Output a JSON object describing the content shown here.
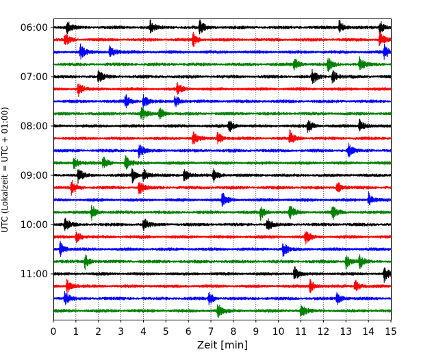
{
  "chart_data": {
    "type": "line",
    "title": "",
    "xlabel": "Zeit  [min]",
    "ylabel": "UTC (Lokalzeit = UTC + 01:00)",
    "xlim": [
      0,
      15
    ],
    "x_ticks": [
      0,
      1,
      2,
      3,
      4,
      5,
      6,
      7,
      8,
      9,
      10,
      11,
      12,
      13,
      14,
      15
    ],
    "x_tick_labels": [
      "0",
      "1",
      "2",
      "3",
      "4",
      "5",
      "6",
      "7",
      "8",
      "9",
      "10",
      "11",
      "12",
      "13",
      "14",
      "15"
    ],
    "y_tick_labels": [
      "06:00",
      "07:00",
      "08:00",
      "09:00",
      "10:00",
      "11:00"
    ],
    "grid": "vertical dotted",
    "trace_colors": [
      "#000000",
      "#ff0000",
      "#0000ff",
      "#008000"
    ],
    "row_minutes": 15,
    "traces": [
      {
        "start": "06:00",
        "events": [
          0.6,
          4.3,
          6.5,
          12.7,
          14.5
        ]
      },
      {
        "start": "06:15",
        "events": [
          0.5,
          6.2,
          14.5
        ]
      },
      {
        "start": "06:30",
        "events": [
          1.2,
          2.5,
          14.7
        ]
      },
      {
        "start": "06:45",
        "events": [
          10.7,
          12.2,
          13.6
        ]
      },
      {
        "start": "07:00",
        "events": [
          2.0,
          11.5,
          12.4
        ]
      },
      {
        "start": "07:15",
        "events": [
          1.1,
          5.5
        ]
      },
      {
        "start": "07:30",
        "events": [
          3.2,
          4.0,
          5.4
        ]
      },
      {
        "start": "07:45",
        "events": [
          4.7,
          3.9
        ]
      },
      {
        "start": "08:00",
        "events": [
          7.8,
          11.3,
          13.6
        ]
      },
      {
        "start": "08:15",
        "events": [
          6.2,
          7.3,
          10.5
        ]
      },
      {
        "start": "08:30",
        "events": [
          13.1,
          3.8
        ]
      },
      {
        "start": "08:45",
        "events": [
          0.9,
          2.2,
          3.2
        ]
      },
      {
        "start": "09:00",
        "events": [
          1.1,
          3.5,
          4.0,
          5.8,
          7.1
        ]
      },
      {
        "start": "09:15",
        "events": [
          0.8,
          3.8,
          12.6
        ]
      },
      {
        "start": "09:30",
        "events": [
          7.5,
          14.0
        ]
      },
      {
        "start": "09:45",
        "events": [
          1.7,
          9.2,
          10.5,
          12.4
        ]
      },
      {
        "start": "10:00",
        "events": [
          0.5,
          4.0,
          9.5
        ]
      },
      {
        "start": "10:15",
        "events": [
          1.0,
          11.2
        ]
      },
      {
        "start": "10:30",
        "events": [
          0.3,
          10.2
        ]
      },
      {
        "start": "10:45",
        "events": [
          1.4,
          13.0,
          13.6
        ]
      },
      {
        "start": "11:00",
        "events": [
          10.7,
          14.7
        ]
      },
      {
        "start": "11:15",
        "events": [
          0.6,
          11.4,
          13.4
        ]
      },
      {
        "start": "11:30",
        "events": [
          0.5,
          6.9,
          12.6
        ]
      },
      {
        "start": "11:45",
        "events": [
          11.0,
          7.3
        ]
      }
    ]
  }
}
